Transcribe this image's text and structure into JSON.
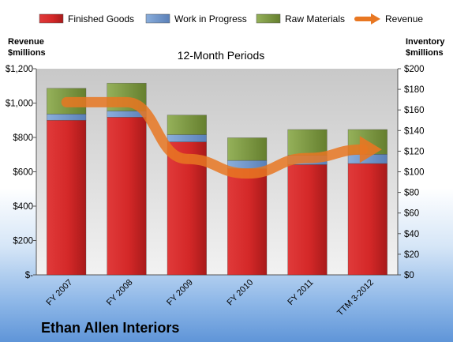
{
  "chart_data": {
    "type": "bar",
    "subtitle": "12-Month Periods",
    "footer_title": "Ethan Allen Interiors",
    "categories": [
      "FY 2007",
      "FY 2008",
      "FY 2009",
      "FY 2010",
      "FY 2011",
      "TTM 3-2012"
    ],
    "series": [
      {
        "name": "Finished Goods",
        "axis": "right",
        "stack": "inventory",
        "color": "#cc2222",
        "values": [
          150,
          153,
          129,
          103,
          107,
          108
        ]
      },
      {
        "name": "Work in Progress",
        "axis": "right",
        "stack": "inventory",
        "color": "#6f95c9",
        "values": [
          6,
          6,
          7,
          8,
          9,
          9
        ]
      },
      {
        "name": "Raw Materials",
        "axis": "right",
        "stack": "inventory",
        "color": "#77933c",
        "values": [
          25,
          27,
          19,
          22,
          25,
          24
        ]
      },
      {
        "name": "Revenue",
        "type": "line",
        "axis": "left",
        "color": "#e87722",
        "values": [
          1005,
          1005,
          675,
          590,
          680,
          730
        ]
      }
    ],
    "y_left": {
      "label_line1": "Revenue",
      "label_line2": "$millions",
      "ylim": [
        0,
        1200
      ],
      "ticks": [
        0,
        200,
        400,
        600,
        800,
        1000,
        1200
      ],
      "tick_labels": [
        "$-",
        "$200",
        "$400",
        "$600",
        "$800",
        "$1,000",
        "$1,200"
      ]
    },
    "y_right": {
      "label_line1": "Inventory",
      "label_line2": "$millions",
      "ylim": [
        0,
        200
      ],
      "ticks": [
        0,
        20,
        40,
        60,
        80,
        100,
        120,
        140,
        160,
        180,
        200
      ],
      "tick_labels": [
        "$0",
        "$20",
        "$40",
        "$60",
        "$80",
        "$100",
        "$120",
        "$140",
        "$160",
        "$180",
        "$200"
      ]
    },
    "legend": {
      "placement": "top",
      "items": [
        {
          "label": "Finished Goods",
          "color": "#cc2222",
          "kind": "bar"
        },
        {
          "label": "Work in Progress",
          "color": "#6f95c9",
          "kind": "bar"
        },
        {
          "label": "Raw Materials",
          "color": "#77933c",
          "kind": "bar"
        },
        {
          "label": "Revenue",
          "color": "#e87722",
          "kind": "arrow"
        }
      ]
    },
    "grid": false,
    "plot_background": "gray-gradient"
  }
}
